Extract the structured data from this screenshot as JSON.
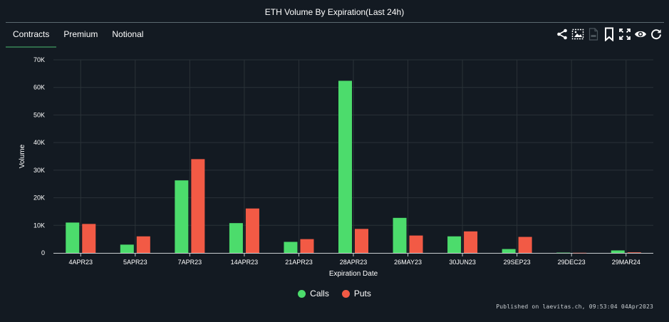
{
  "header": {
    "title": "ETH Volume By Expiration(Last 24h)"
  },
  "tabs": [
    {
      "label": "Contracts",
      "active": true
    },
    {
      "label": "Premium",
      "active": false
    },
    {
      "label": "Notional",
      "active": false
    }
  ],
  "toolbar": {
    "icons": [
      "share-icon",
      "image-export-icon",
      "file-icon",
      "bookmark-icon",
      "fullscreen-icon",
      "eye-icon",
      "refresh-icon"
    ]
  },
  "colors": {
    "calls": "#4cdc6c",
    "puts": "#f25a45",
    "grid": "#2a3238",
    "background": "#131a22"
  },
  "chart_data": {
    "type": "bar",
    "title": "ETH Volume By Expiration(Last 24h)",
    "xlabel": "Expiration Date",
    "ylabel": "Volume",
    "ylim": [
      0,
      70000
    ],
    "yticks": [
      0,
      10000,
      20000,
      30000,
      40000,
      50000,
      60000,
      70000
    ],
    "ytick_labels": [
      "0",
      "10K",
      "20K",
      "30K",
      "40K",
      "50K",
      "60K",
      "70K"
    ],
    "categories": [
      "4APR23",
      "5APR23",
      "7APR23",
      "14APR23",
      "21APR23",
      "28APR23",
      "26MAY23",
      "30JUN23",
      "29SEP23",
      "29DEC23",
      "29MAR24"
    ],
    "series": [
      {
        "name": "Calls",
        "color": "#4cdc6c",
        "values": [
          11000,
          3000,
          26300,
          10800,
          4000,
          62400,
          12700,
          6000,
          1400,
          100,
          900
        ]
      },
      {
        "name": "Puts",
        "color": "#f25a45",
        "values": [
          10500,
          6000,
          34000,
          16100,
          5000,
          8700,
          6300,
          7800,
          5800,
          50,
          200
        ]
      }
    ],
    "grid": true,
    "legend": "bottom-center"
  },
  "footer": {
    "published": "Published on laevitas.ch, 09:53:04 04Apr2023"
  }
}
